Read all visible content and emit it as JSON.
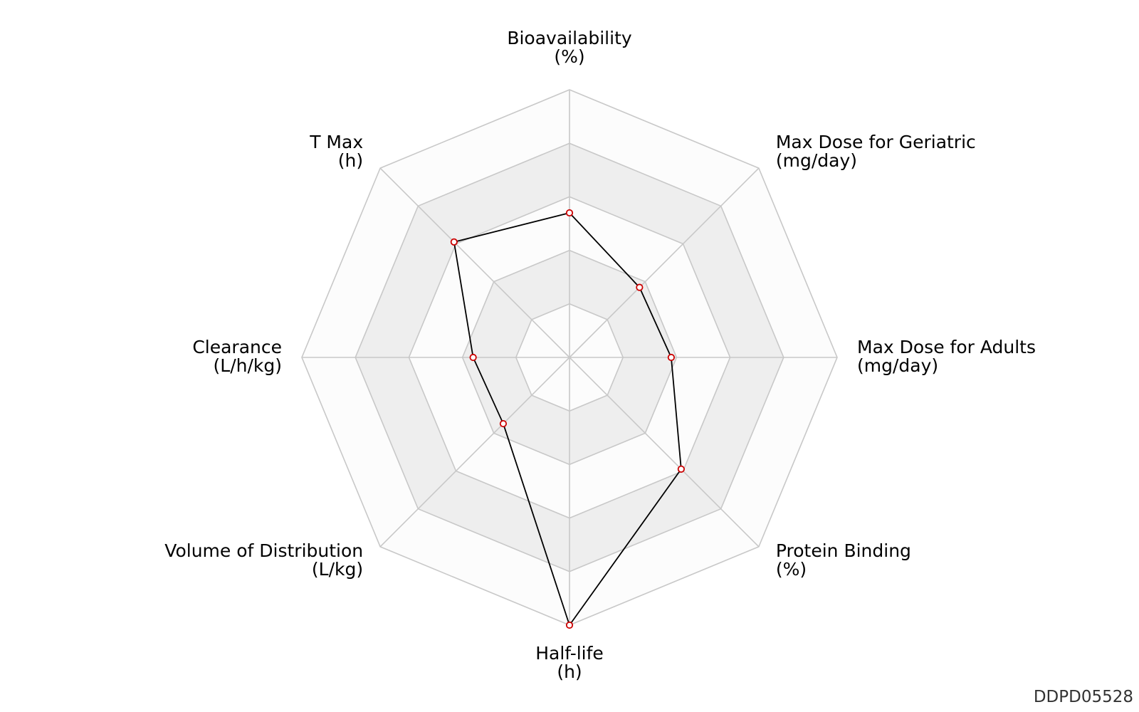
{
  "chart_data": {
    "type": "radar",
    "axes": [
      {
        "name": "Bioavailability",
        "unit": "(%)"
      },
      {
        "name": "Max Dose for Geriatric",
        "unit": "(mg/day)"
      },
      {
        "name": "Max Dose for Adults",
        "unit": "(mg/day)"
      },
      {
        "name": "Protein Binding",
        "unit": "(%)"
      },
      {
        "name": "Half-life",
        "unit": "(h)"
      },
      {
        "name": "Volume of Distribution",
        "unit": "(L/kg)"
      },
      {
        "name": "Clearance",
        "unit": "(L/h/kg)"
      },
      {
        "name": "T Max",
        "unit": "(h)"
      }
    ],
    "rings": 5,
    "series": [
      {
        "values": [
          0.54,
          0.37,
          0.38,
          0.59,
          1.0,
          0.35,
          0.36,
          0.61
        ]
      }
    ],
    "colors": {
      "band_light": "#fcfcfc",
      "band_dark": "#eeeeee",
      "grid": "#c8c8c8",
      "line": "#000000",
      "marker_stroke": "#cc0000",
      "marker_fill": "#ffffff"
    }
  },
  "watermark": "DDPD05528"
}
